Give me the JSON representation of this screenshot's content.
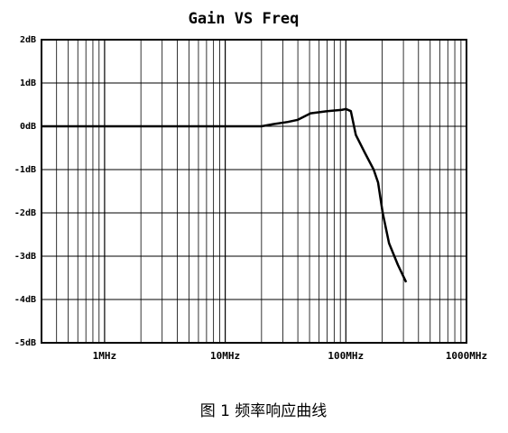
{
  "chart_data": {
    "type": "line",
    "title": "Gain VS Freq",
    "caption": "图 1 频率响应曲线",
    "x_log": true,
    "grid": true,
    "minor_grid": true,
    "xlim": [
      0.3,
      1000
    ],
    "xticks": [
      {
        "value": 1,
        "label": "1MHz"
      },
      {
        "value": 10,
        "label": "10MHz"
      },
      {
        "value": 100,
        "label": "100MHz"
      },
      {
        "value": 1000,
        "label": "1000MHz"
      }
    ],
    "ylim": [
      -5,
      2
    ],
    "yticks": [
      {
        "value": 2,
        "label": "2dB"
      },
      {
        "value": 1,
        "label": "1dB"
      },
      {
        "value": 0,
        "label": "0dB"
      },
      {
        "value": -1,
        "label": "-1dB"
      },
      {
        "value": -2,
        "label": "-2dB"
      },
      {
        "value": -3,
        "label": "-3dB"
      },
      {
        "value": -4,
        "label": "-4dB"
      },
      {
        "value": -5,
        "label": "-5dB"
      }
    ],
    "series": [
      {
        "color": "#000000",
        "x": [
          0.3,
          20,
          25,
          33,
          40,
          51,
          70,
          93,
          100,
          110,
          121,
          143,
          170,
          185,
          202,
          228,
          270,
          316
        ],
        "values": [
          0,
          0,
          0.05,
          0.1,
          0.15,
          0.3,
          0.35,
          0.38,
          0.4,
          0.35,
          -0.2,
          -0.6,
          -1,
          -1.3,
          -2,
          -2.7,
          -3.2,
          -3.6
        ]
      }
    ]
  }
}
